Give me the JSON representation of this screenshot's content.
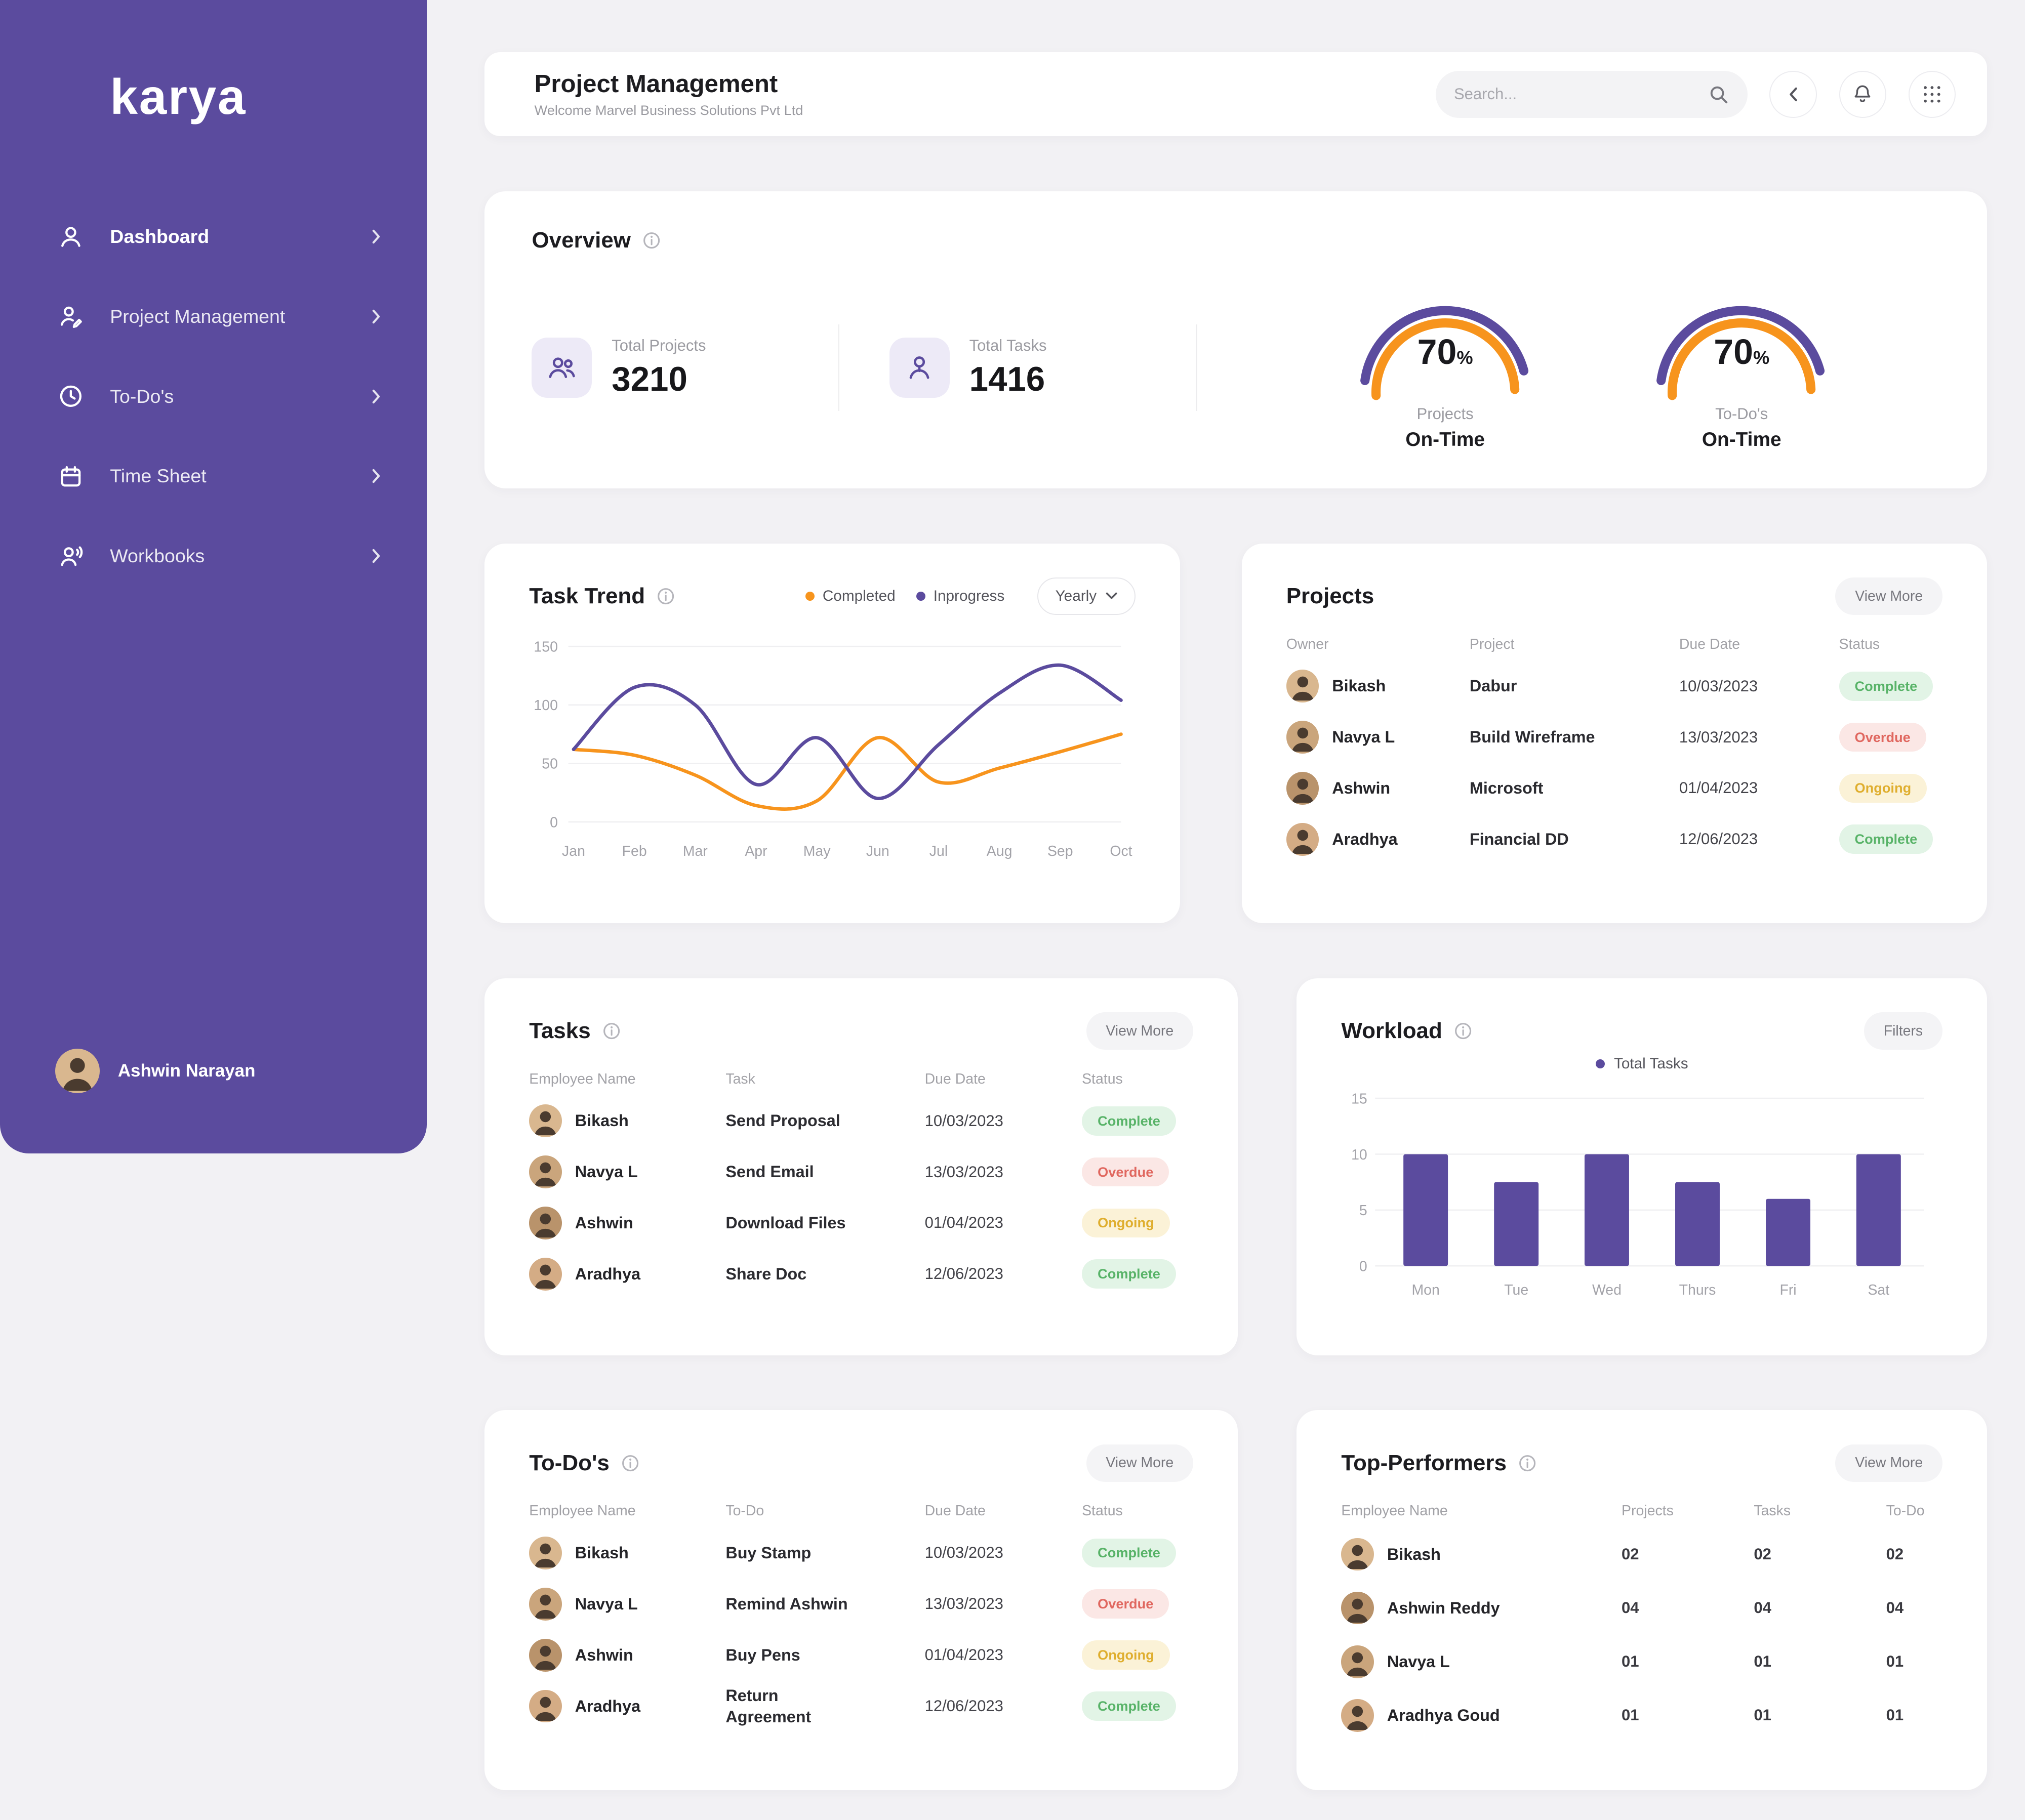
{
  "brand": {
    "logo_text": "karya"
  },
  "sidebar": {
    "items": [
      {
        "label": "Dashboard"
      },
      {
        "label": "Project Management"
      },
      {
        "label": "To-Do's"
      },
      {
        "label": "Time Sheet"
      },
      {
        "label": "Workbooks"
      }
    ],
    "user_name": "Ashwin Narayan"
  },
  "header": {
    "title": "Project Management",
    "subtitle": "Welcome Marvel Business Solutions Pvt Ltd",
    "search_placeholder": "Search..."
  },
  "overview": {
    "title": "Overview",
    "total_projects_label": "Total Projects",
    "total_projects_value": "3210",
    "total_tasks_label": "Total Tasks",
    "total_tasks_value": "1416",
    "gauge_projects": {
      "value": "70",
      "unit": "%",
      "label": "Projects",
      "sublabel": "On-Time"
    },
    "gauge_todos": {
      "value": "70",
      "unit": "%",
      "label": "To-Do's",
      "sublabel": "On-Time"
    }
  },
  "task_trend": {
    "title": "Task Trend",
    "legend": [
      {
        "name": "Completed",
        "color": "#F7941D"
      },
      {
        "name": "Inprogress",
        "color": "#5B4B9E"
      }
    ],
    "range_label": "Yearly"
  },
  "chart_data": [
    {
      "type": "line",
      "title": "Task Trend",
      "x": [
        "Jan",
        "Feb",
        "Mar",
        "Apr",
        "May",
        "Jun",
        "Jul",
        "Aug",
        "Sep",
        "Oct"
      ],
      "series": [
        {
          "name": "Completed",
          "color": "#F7941D",
          "values": [
            62,
            57,
            40,
            14,
            18,
            72,
            34,
            46,
            60,
            75
          ]
        },
        {
          "name": "Inprogress",
          "color": "#5B4B9E",
          "values": [
            62,
            115,
            100,
            32,
            72,
            20,
            66,
            110,
            134,
            104
          ]
        }
      ],
      "ylim": [
        0,
        150
      ],
      "yticks": [
        0,
        50,
        100,
        150
      ],
      "legend_position": "top"
    },
    {
      "type": "bar",
      "title": "Workload",
      "categories": [
        "Mon",
        "Tue",
        "Wed",
        "Thurs",
        "Fri",
        "Sat"
      ],
      "series": [
        {
          "name": "Total Tasks",
          "color": "#5B4B9E",
          "values": [
            10,
            7.5,
            10,
            7.5,
            6,
            10
          ]
        }
      ],
      "ylim": [
        0,
        15
      ],
      "yticks": [
        0,
        5,
        10,
        15
      ],
      "legend_position": "top"
    }
  ],
  "projects": {
    "title": "Projects",
    "view_more": "View More",
    "headers": [
      "Owner",
      "Project",
      "Due Date",
      "Status"
    ],
    "rows": [
      {
        "owner": "Bikash",
        "project": "Dabur",
        "due": "10/03/2023",
        "status": "Complete"
      },
      {
        "owner": "Navya L",
        "project": "Build Wireframe",
        "due": "13/03/2023",
        "status": "Overdue"
      },
      {
        "owner": "Ashwin",
        "project": "Microsoft",
        "due": "01/04/2023",
        "status": "Ongoing"
      },
      {
        "owner": "Aradhya",
        "project": "Financial DD",
        "due": "12/06/2023",
        "status": "Complete"
      }
    ]
  },
  "tasks": {
    "title": "Tasks",
    "view_more": "View More",
    "headers": [
      "Employee Name",
      "Task",
      "Due Date",
      "Status"
    ],
    "rows": [
      {
        "name": "Bikash",
        "task": "Send Proposal",
        "due": "10/03/2023",
        "status": "Complete"
      },
      {
        "name": "Navya L",
        "task": "Send Email",
        "due": "13/03/2023",
        "status": "Overdue"
      },
      {
        "name": "Ashwin",
        "task": "Download Files",
        "due": "01/04/2023",
        "status": "Ongoing"
      },
      {
        "name": "Aradhya",
        "task": "Share Doc",
        "due": "12/06/2023",
        "status": "Complete"
      }
    ]
  },
  "workload": {
    "title": "Workload",
    "filters_label": "Filters",
    "legend": "Total Tasks"
  },
  "todos": {
    "title": "To-Do's",
    "view_more": "View More",
    "headers": [
      "Employee Name",
      "To-Do",
      "Due Date",
      "Status"
    ],
    "rows": [
      {
        "name": "Bikash",
        "todo": "Buy Stamp",
        "due": "10/03/2023",
        "status": "Complete"
      },
      {
        "name": "Navya L",
        "todo": "Remind Ashwin",
        "due": "13/03/2023",
        "status": "Overdue"
      },
      {
        "name": "Ashwin",
        "todo": "Buy Pens",
        "due": "01/04/2023",
        "status": "Ongoing"
      },
      {
        "name": "Aradhya",
        "todo": "Return Agreement",
        "due": "12/06/2023",
        "status": "Complete"
      }
    ]
  },
  "top_performers": {
    "title": "Top-Performers",
    "view_more": "View More",
    "headers": [
      "Employee Name",
      "Projects",
      "Tasks",
      "To-Do"
    ],
    "rows": [
      {
        "name": "Bikash",
        "projects": "02",
        "tasks": "02",
        "todo": "02"
      },
      {
        "name": "Ashwin Reddy",
        "projects": "04",
        "tasks": "04",
        "todo": "04"
      },
      {
        "name": "Navya L",
        "projects": "01",
        "tasks": "01",
        "todo": "01"
      },
      {
        "name": "Aradhya Goud",
        "projects": "01",
        "tasks": "01",
        "todo": "01"
      }
    ]
  },
  "colors": {
    "sidebar_purple": "#5B4B9E",
    "accent_orange": "#F7941D",
    "status_complete": "#58B368",
    "status_overdue": "#E0675F",
    "status_ongoing": "#DFAE2E",
    "background": "#F2F1F4"
  }
}
